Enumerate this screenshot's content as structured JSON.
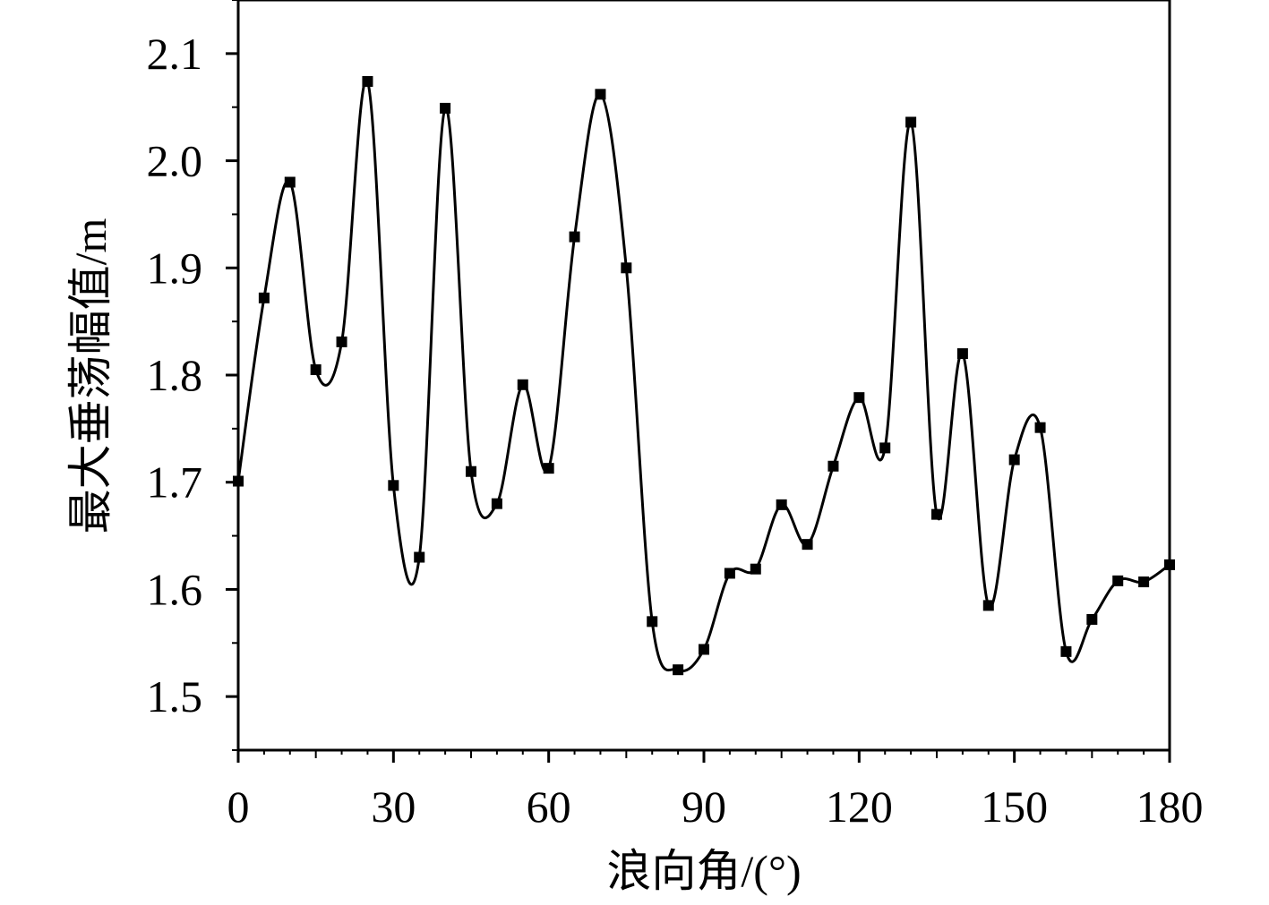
{
  "chart_data": {
    "type": "line",
    "title": "",
    "xlabel": "浪向角/(°)",
    "ylabel": "最大垂荡幅值/m",
    "xlim": [
      0,
      180
    ],
    "ylim": [
      1.45,
      2.15
    ],
    "x_ticks": [
      0,
      30,
      60,
      90,
      120,
      150,
      180
    ],
    "x_tick_labels": [
      "0",
      "30",
      "60",
      "90",
      "120",
      "150",
      "180"
    ],
    "y_ticks": [
      1.5,
      1.6,
      1.7,
      1.8,
      1.9,
      2.0,
      2.1
    ],
    "y_tick_labels": [
      "1.5",
      "1.6",
      "1.7",
      "1.8",
      "1.9",
      "2.0",
      "2.1"
    ],
    "grid": false,
    "legend": false,
    "line_color": "#000000",
    "marker": "square",
    "series": [
      {
        "x": [
          0,
          5,
          10,
          15,
          20,
          25,
          30,
          35,
          40,
          45,
          50,
          55,
          60,
          65,
          70,
          75,
          80,
          85,
          90,
          95,
          100,
          105,
          110,
          115,
          120,
          125,
          130,
          135,
          140,
          145,
          150,
          155,
          160,
          165,
          170,
          175,
          180
        ],
        "values": [
          1.701,
          1.872,
          1.98,
          1.805,
          1.831,
          2.074,
          1.697,
          1.63,
          2.049,
          1.71,
          1.68,
          1.791,
          1.713,
          1.929,
          2.062,
          1.9,
          1.57,
          1.525,
          1.544,
          1.615,
          1.619,
          1.679,
          1.642,
          1.715,
          1.779,
          1.732,
          2.036,
          1.67,
          1.82,
          1.585,
          1.721,
          1.751,
          1.542,
          1.572,
          1.608,
          1.607,
          1.623
        ]
      }
    ]
  }
}
